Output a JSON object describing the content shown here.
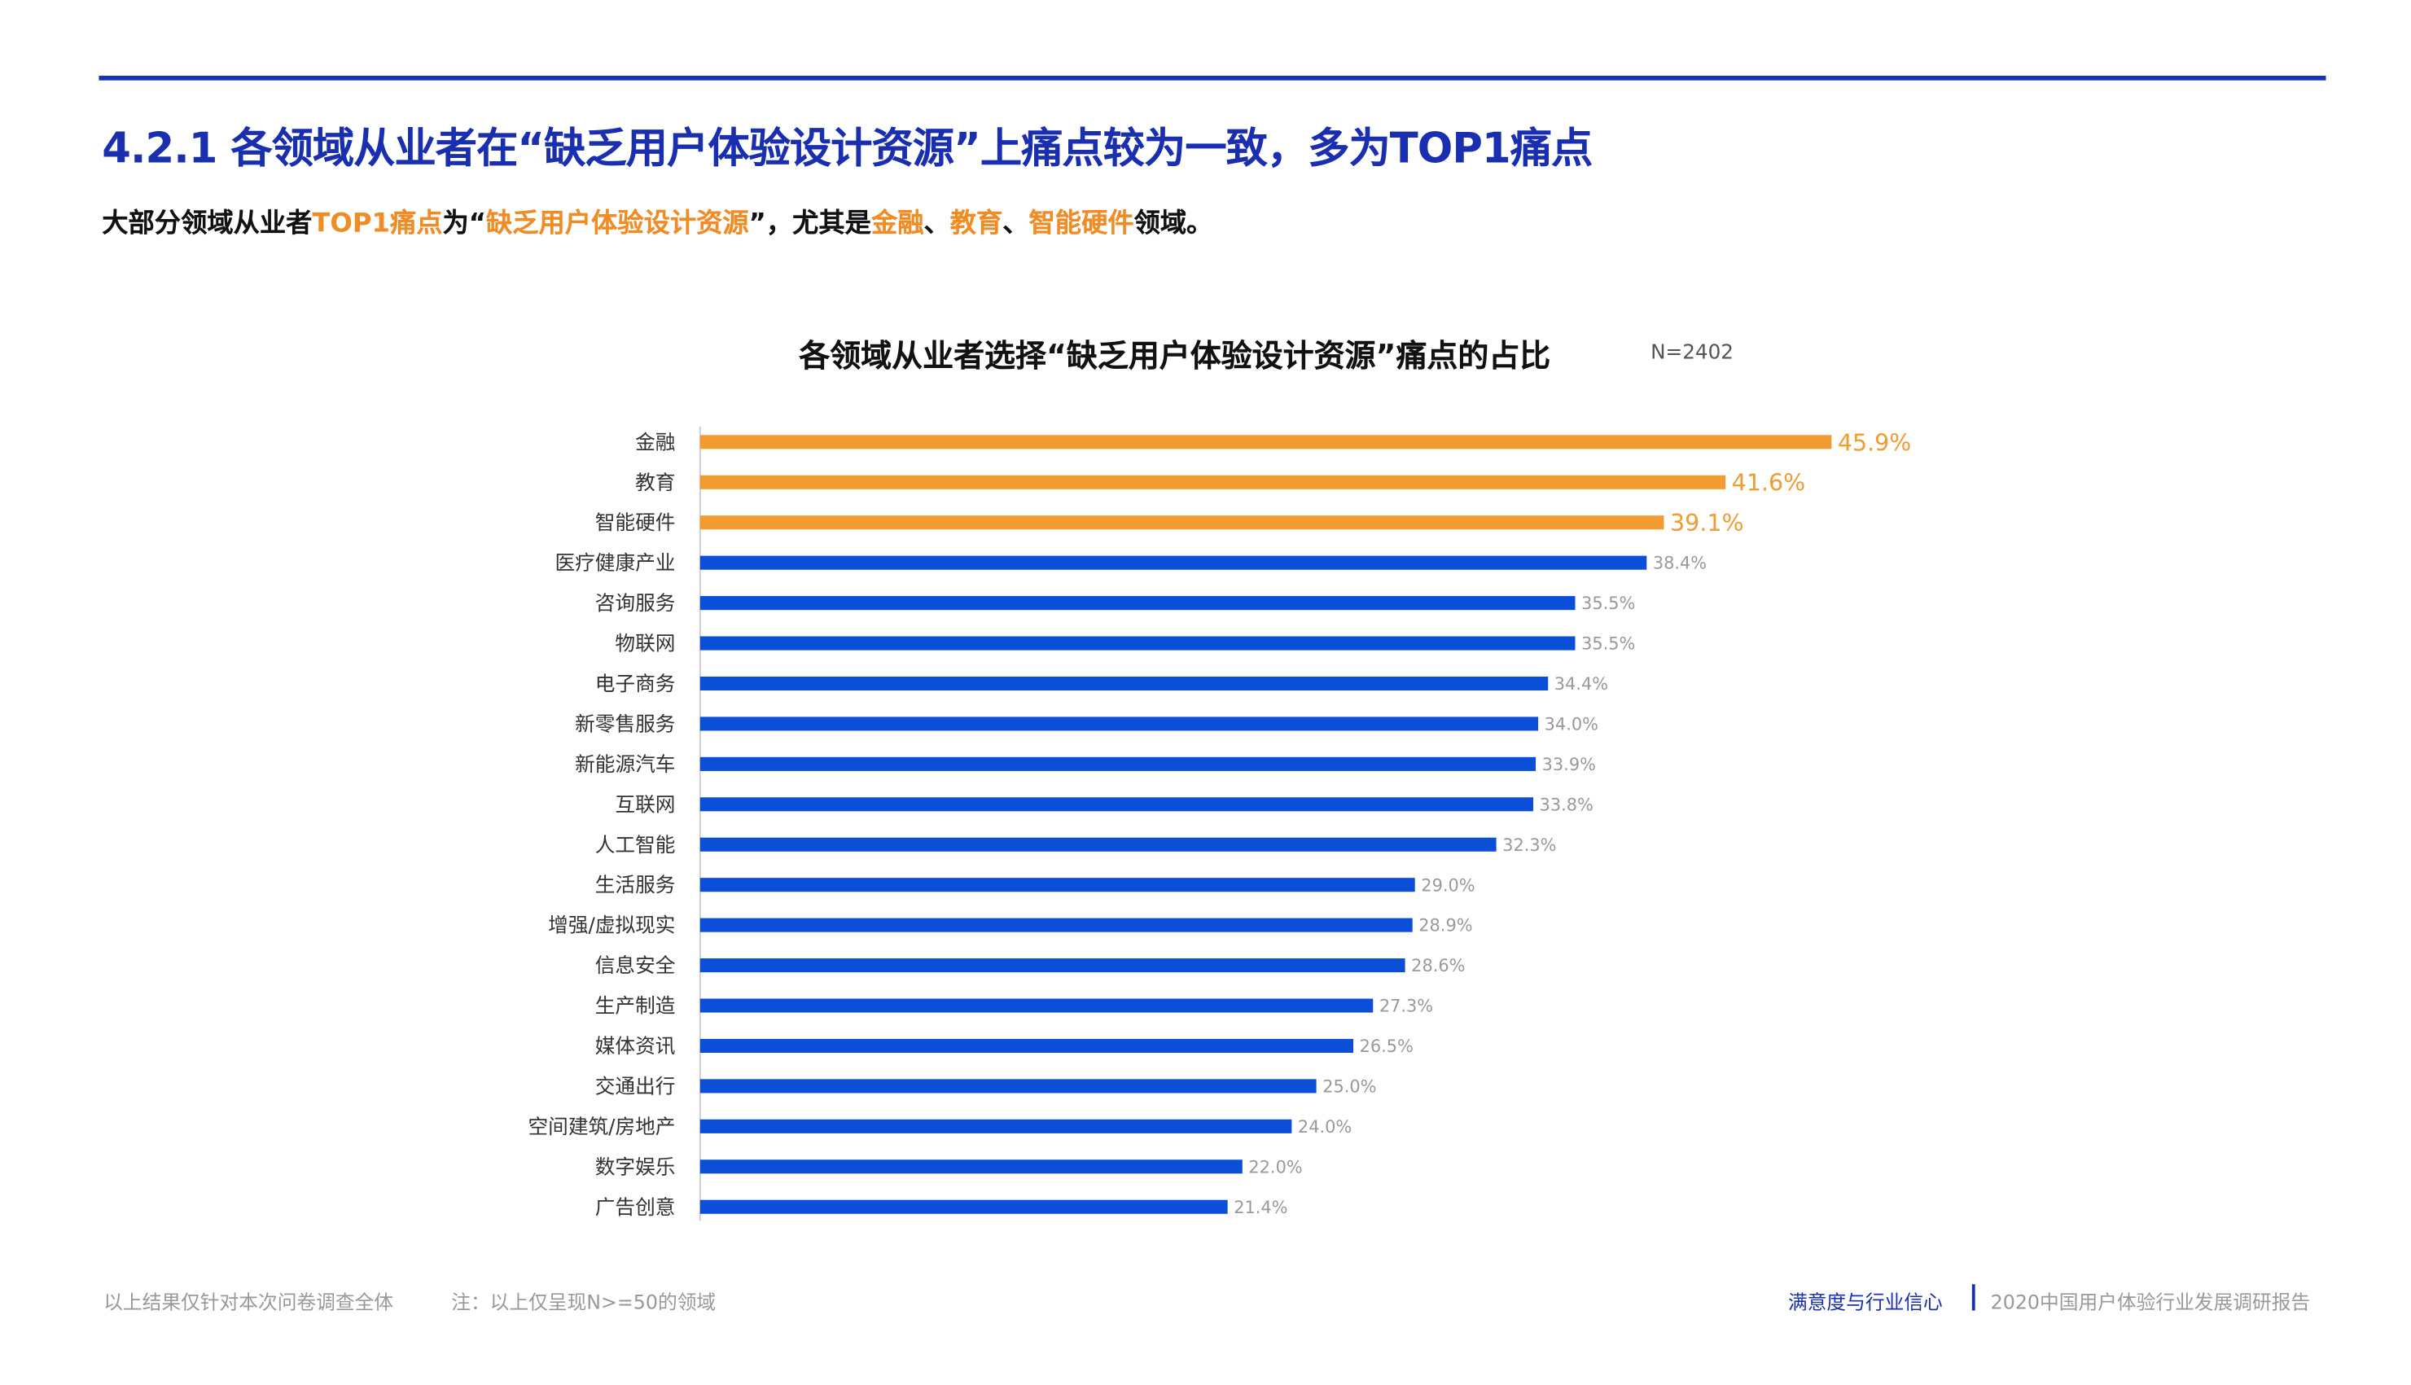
{
  "header": {
    "title": "4.2.1 各领域从业者在“缺乏用户体验设计资源”上痛点较为一致，多为TOP1痛点",
    "subtitle_parts": [
      {
        "text": "大部分领域从业者",
        "highlight": false
      },
      {
        "text": "TOP1痛点",
        "highlight": true
      },
      {
        "text": "为“",
        "highlight": false
      },
      {
        "text": "缺乏用户体验设计资源",
        "highlight": true
      },
      {
        "text": "”，尤其是",
        "highlight": false
      },
      {
        "text": "金融",
        "highlight": true
      },
      {
        "text": "、",
        "highlight": false
      },
      {
        "text": "教育",
        "highlight": true
      },
      {
        "text": "、",
        "highlight": false
      },
      {
        "text": "智能硬件",
        "highlight": true
      },
      {
        "text": "领域。",
        "highlight": false
      }
    ]
  },
  "chart_data": {
    "type": "bar",
    "orientation": "horizontal",
    "title": "各领域从业者选择“缺乏用户体验设计资源”痛点的占比",
    "sample_note": "N=2402",
    "categories": [
      "金融",
      "教育",
      "智能硬件",
      "医疗健康产业",
      "咨询服务",
      "物联网",
      "电子商务",
      "新零售服务",
      "新能源汽车",
      "互联网",
      "人工智能",
      "生活服务",
      "增强/虚拟现实",
      "信息安全",
      "生产制造",
      "媒体资讯",
      "交通出行",
      "空间建筑/房地产",
      "数字娱乐",
      "广告创意"
    ],
    "values": [
      45.9,
      41.6,
      39.1,
      38.4,
      35.5,
      35.5,
      34.4,
      34.0,
      33.9,
      33.8,
      32.3,
      29.0,
      28.9,
      28.6,
      27.3,
      26.5,
      25.0,
      24.0,
      22.0,
      21.4
    ],
    "highlighted_count": 3,
    "value_suffix": "%",
    "colors": {
      "highlight": "#f29b30",
      "default": "#0b4fd8"
    },
    "grid": false
  },
  "footer": {
    "note_left": "以上结果仅针对本次问卷调查全体",
    "note_right": "注：以上仅呈现N>=50的领域",
    "section": "满意度与行业信心",
    "report": "2020中国用户体验行业发展调研报告"
  }
}
